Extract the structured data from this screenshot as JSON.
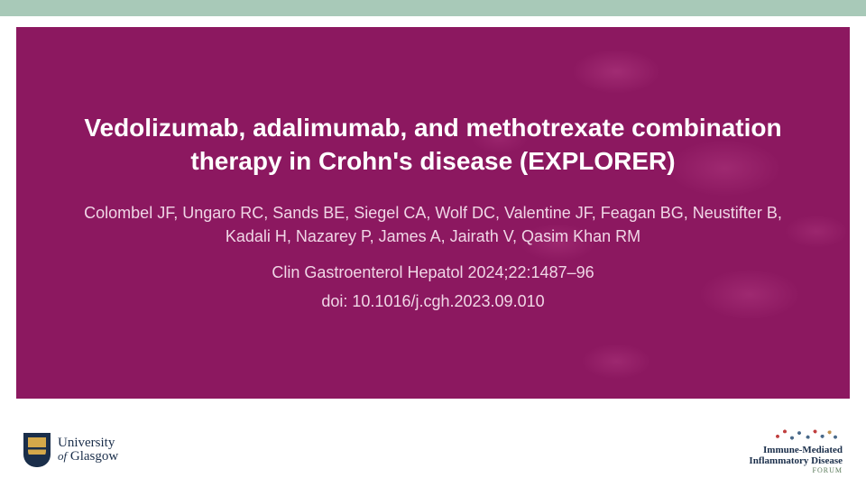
{
  "colors": {
    "top_bar": "#a8c9b8",
    "panel_bg": "#8c1860",
    "title_text": "#ffffff",
    "body_text": "#f0d6e6",
    "footer_text": "#1a2e4a"
  },
  "slide": {
    "title": "Vedolizumab, adalimumab, and methotrexate combination therapy in Crohn's disease (EXPLORER)",
    "authors": "Colombel JF, Ungaro RC, Sands BE, Siegel CA, Wolf DC, Valentine JF, Feagan BG, Neustifter B, Kadali H, Nazarey P, James A, Jairath V, Qasim Khan RM",
    "journal": "Clin Gastroenterol Hepatol 2024;22:1487–96",
    "doi": "doi: 10.1016/j.cgh.2023.09.010"
  },
  "footer": {
    "left": {
      "line1": "University",
      "line2_prefix": "of",
      "line2_main": "Glasgow"
    },
    "right": {
      "line1": "Immune-Mediated",
      "line2": "Inflammatory Disease",
      "forum": "FORUM"
    }
  }
}
